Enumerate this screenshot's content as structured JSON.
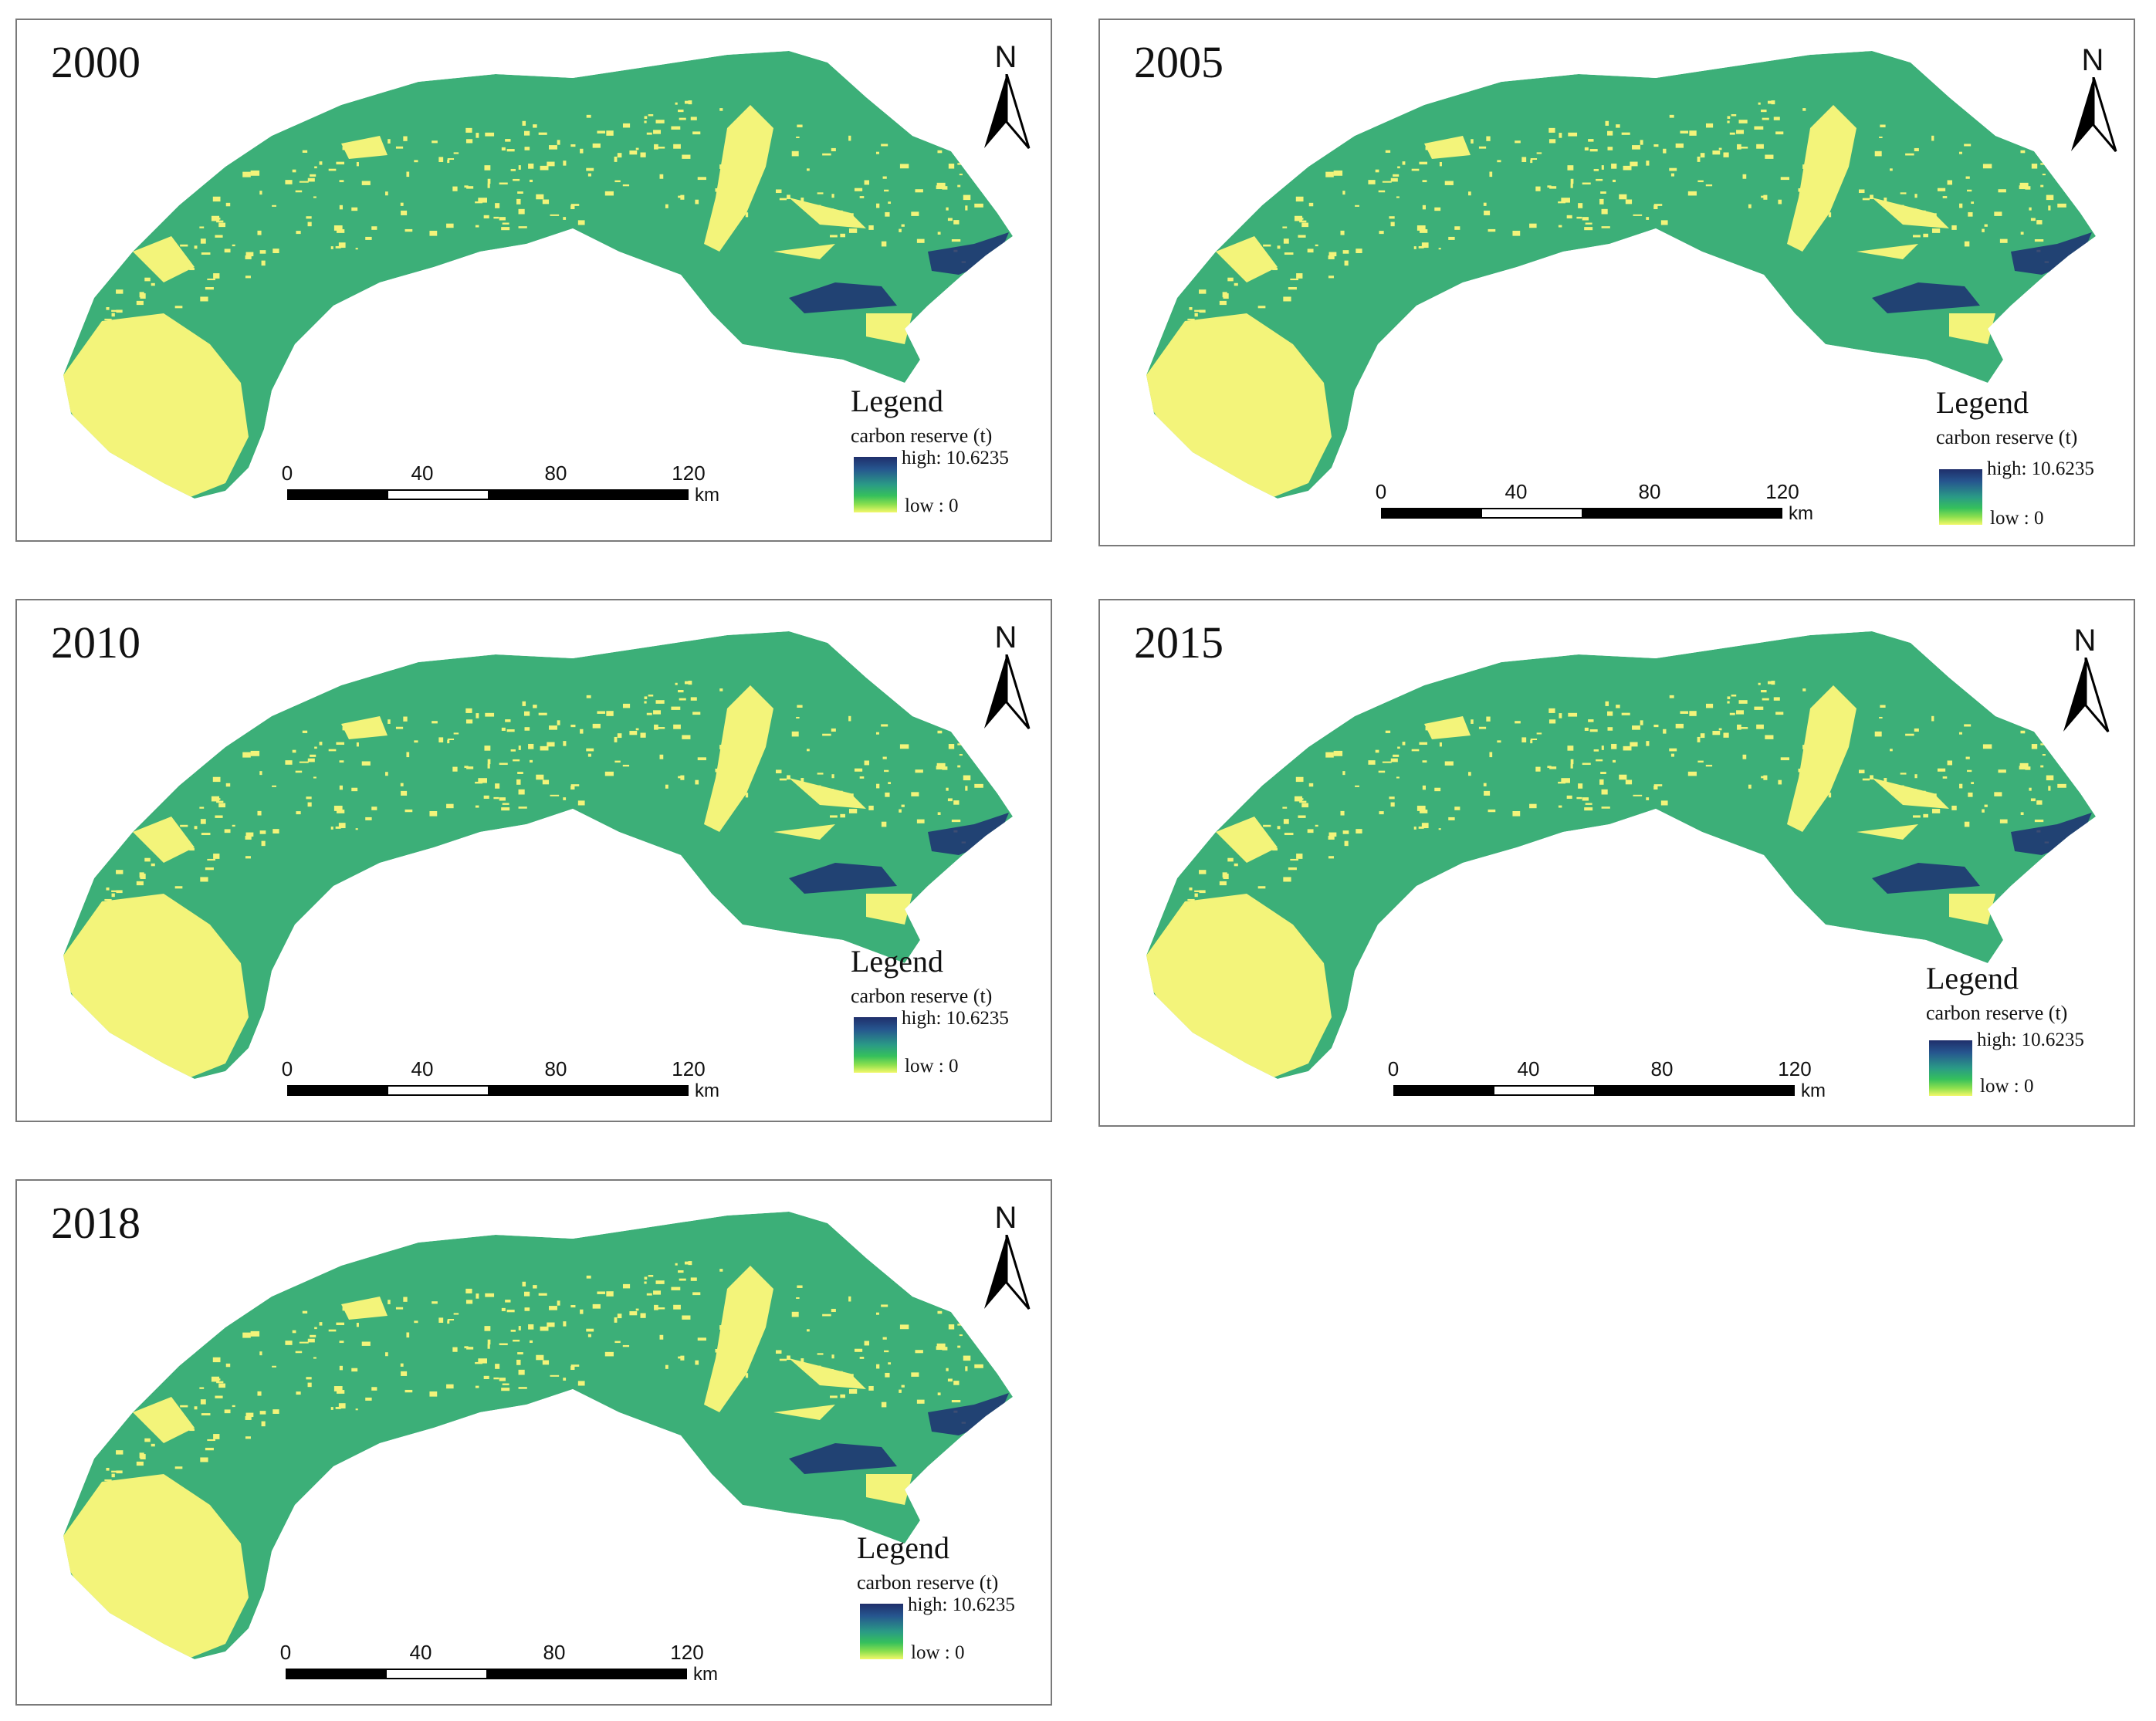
{
  "panels": [
    {
      "year": "2000",
      "north": "N",
      "legend_title": "Legend",
      "legend_sub": "carbon reserve (t)",
      "high": "high: 10.6235",
      "low": "low : 0",
      "scale_ticks": [
        "0",
        "40",
        "80",
        "120"
      ],
      "scale_unit": "km"
    },
    {
      "year": "2005",
      "north": "N",
      "legend_title": "Legend",
      "legend_sub": "carbon reserve (t)",
      "high": "high: 10.6235",
      "low": "low : 0",
      "scale_ticks": [
        "0",
        "40",
        "80",
        "120"
      ],
      "scale_unit": "km"
    },
    {
      "year": "2010",
      "north": "N",
      "legend_title": "Legend",
      "legend_sub": "carbon reserve (t)",
      "high": "high: 10.6235",
      "low": "low : 0",
      "scale_ticks": [
        "0",
        "40",
        "80",
        "120"
      ],
      "scale_unit": "km"
    },
    {
      "year": "2015",
      "north": "N",
      "legend_title": "Legend",
      "legend_sub": "carbon reserve (t)",
      "high": "high: 10.6235",
      "low": "low : 0",
      "scale_ticks": [
        "0",
        "40",
        "80",
        "120"
      ],
      "scale_unit": "km"
    },
    {
      "year": "2018",
      "north": "N",
      "legend_title": "Legend",
      "legend_sub": "carbon reserve (t)",
      "high": "high: 10.6235",
      "low": "low : 0",
      "scale_ticks": [
        "0",
        "40",
        "80",
        "120"
      ],
      "scale_unit": "km"
    }
  ],
  "colors": {
    "map_green": "#3caf78",
    "map_yellow": "#f3f47a",
    "map_dark_blue": "#1c2f72",
    "ramp_high": "#1f2f6b",
    "ramp_low": "#f3f86a"
  }
}
